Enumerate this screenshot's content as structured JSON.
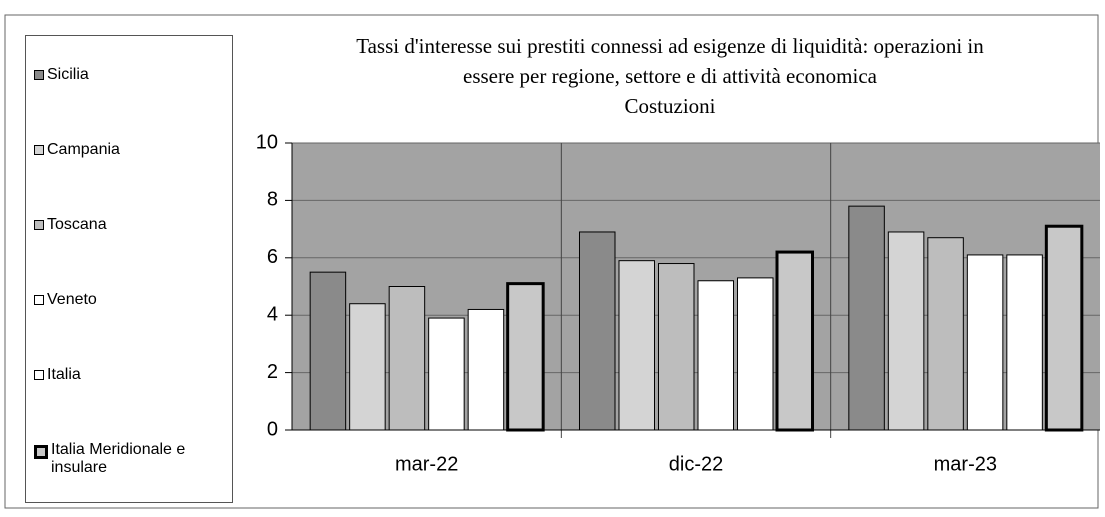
{
  "chart_data": {
    "type": "bar",
    "title": [
      "Tassi  d'interesse sui prestiti connessi ad esigenze di liquidità: operazioni in",
      "essere per regione, settore e di attività economica",
      "Costuzioni"
    ],
    "categories": [
      "mar-22",
      "dic-22",
      "mar-23"
    ],
    "series": [
      {
        "name": "Sicilia",
        "color": "#8a8a8a",
        "values": [
          5.5,
          6.9,
          7.8
        ]
      },
      {
        "name": "Campania",
        "color": "#d4d4d4",
        "values": [
          4.4,
          5.9,
          6.9
        ]
      },
      {
        "name": "Toscana",
        "color": "#bdbdbd",
        "values": [
          5.0,
          5.8,
          6.7
        ]
      },
      {
        "name": "Veneto",
        "color": "#ffffff",
        "values": [
          3.9,
          5.2,
          6.1
        ]
      },
      {
        "name": "Italia",
        "color": "#ffffff",
        "values": [
          4.2,
          5.3,
          6.1
        ]
      },
      {
        "name": "Italia Meridionale e insulare",
        "color": "#c8c8c8",
        "values": [
          5.1,
          6.2,
          7.1
        ]
      }
    ],
    "ylim": [
      0,
      10
    ],
    "yticks": [
      0,
      2,
      4,
      6,
      8,
      10
    ],
    "grid": true,
    "legend": "left"
  }
}
